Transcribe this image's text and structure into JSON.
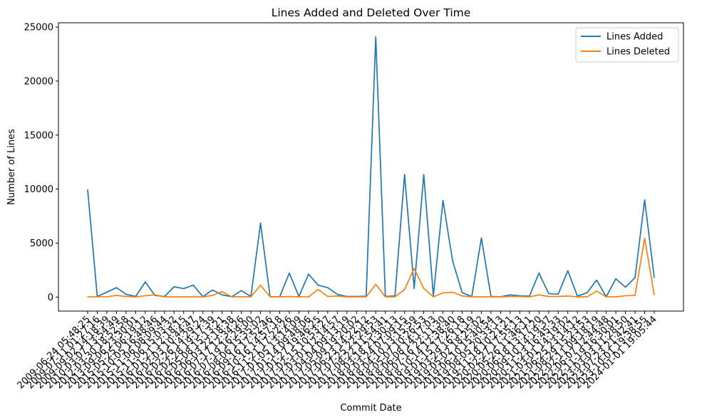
{
  "chart_data": {
    "type": "line",
    "title": "Lines Added and Deleted Over Time",
    "xlabel": "Commit Date",
    "ylabel": "Number of Lines",
    "ylim": [
      -1300,
      25400
    ],
    "yticks": [
      0,
      5000,
      10000,
      15000,
      20000,
      25000
    ],
    "grid": false,
    "legend_position": "top-right",
    "x": [
      "2009-06-24 05:48:25",
      "2009-07-11 01:27:16",
      "2009-09-02 14:18:39",
      "2010-03-07 13:54:49",
      "2012-03-30 18:52:58",
      "2013-09-06 23:30:01",
      "2015-05-25 06:19:12",
      "2015-10-05 16:48:46",
      "2015-11-06 08:09:44",
      "2015-11-06 15:03:32",
      "2016-01-21 12:18:15",
      "2016-02-03 10:44:47",
      "2016-02-26 14:29:24",
      "2016-02-28 19:17:39",
      "2016-05-08 15:13:21",
      "2016-06-03 22:18:38",
      "2016-07-17 12:34:26",
      "2016-07-19 16:29:00",
      "2016-08-06 15:35:02",
      "2016-09-16 17:52:46",
      "2016-10-16 14:57:18",
      "2016-11-21 17:22:26",
      "2017-01-05 13:14:09",
      "2017-01-14 09:48:06",
      "2017-01-27 19:46:25",
      "2017-02-15 10:53:27",
      "2017-03-01 12:14:57",
      "2017-04-04 09:13:19",
      "2017-05-09 19:20:02",
      "2017-06-23 14:22:12",
      "2017-07-25 22:29:53",
      "2017-08-22 11:54:41",
      "2018-03-18 21:30:13",
      "2018-03-24 07:09:15",
      "2018-04-10 13:15:59",
      "2018-05-07 10:26:53",
      "2018-06-08 14:17:03",
      "2018-07-16 22:11:30",
      "2018-10-14 12:38:40",
      "2019-01-15 17:26:18",
      "2019-03-29 16:11:19",
      "2019-05-02 18:25:02",
      "2019-06-10 15:40:54",
      "2019-08-05 20:33:13",
      "2019-11-18 10:21:21",
      "2020-02-27 17:55:13",
      "2020-05-26 11:46:11",
      "2020-06-18 13:17:20",
      "2020-09-10 14:19:37",
      "2020-11-23 16:45:33",
      "2021-03-01 14:19:02",
      "2021-06-25 23:14:12",
      "2021-08-29 15:23:53",
      "2022-02-11 09:18:19",
      "2022-06-07 12:44:48",
      "2022-11-19 16:30:01",
      "2023-03-03 11:28:50",
      "2023-07-23 21:42:41",
      "2023-10-01 19:38:55",
      "2024-01-01 19:05:44"
    ],
    "series": [
      {
        "name": "Lines Added",
        "color": "#1f77b4",
        "values": [
          9950,
          50,
          450,
          870,
          250,
          60,
          1400,
          150,
          50,
          950,
          780,
          1100,
          30,
          650,
          200,
          30,
          600,
          50,
          6850,
          30,
          30,
          2220,
          50,
          2120,
          1100,
          870,
          250,
          50,
          50,
          80,
          24100,
          50,
          100,
          11350,
          800,
          11350,
          120,
          8950,
          3350,
          400,
          50,
          5470,
          50,
          30,
          200,
          120,
          80,
          2220,
          320,
          270,
          2440,
          80,
          400,
          1570,
          30,
          1690,
          920,
          1800,
          9000,
          1800
        ]
      },
      {
        "name": "Lines Deleted",
        "color": "#ff7f0e",
        "values": [
          20,
          20,
          30,
          150,
          50,
          20,
          120,
          200,
          20,
          20,
          20,
          20,
          20,
          150,
          500,
          20,
          30,
          20,
          1100,
          20,
          20,
          50,
          20,
          20,
          700,
          50,
          100,
          20,
          20,
          20,
          1180,
          20,
          20,
          700,
          2650,
          800,
          20,
          380,
          450,
          100,
          20,
          20,
          20,
          20,
          50,
          50,
          20,
          200,
          50,
          50,
          100,
          20,
          20,
          550,
          20,
          20,
          120,
          150,
          5450,
          200
        ]
      }
    ]
  }
}
